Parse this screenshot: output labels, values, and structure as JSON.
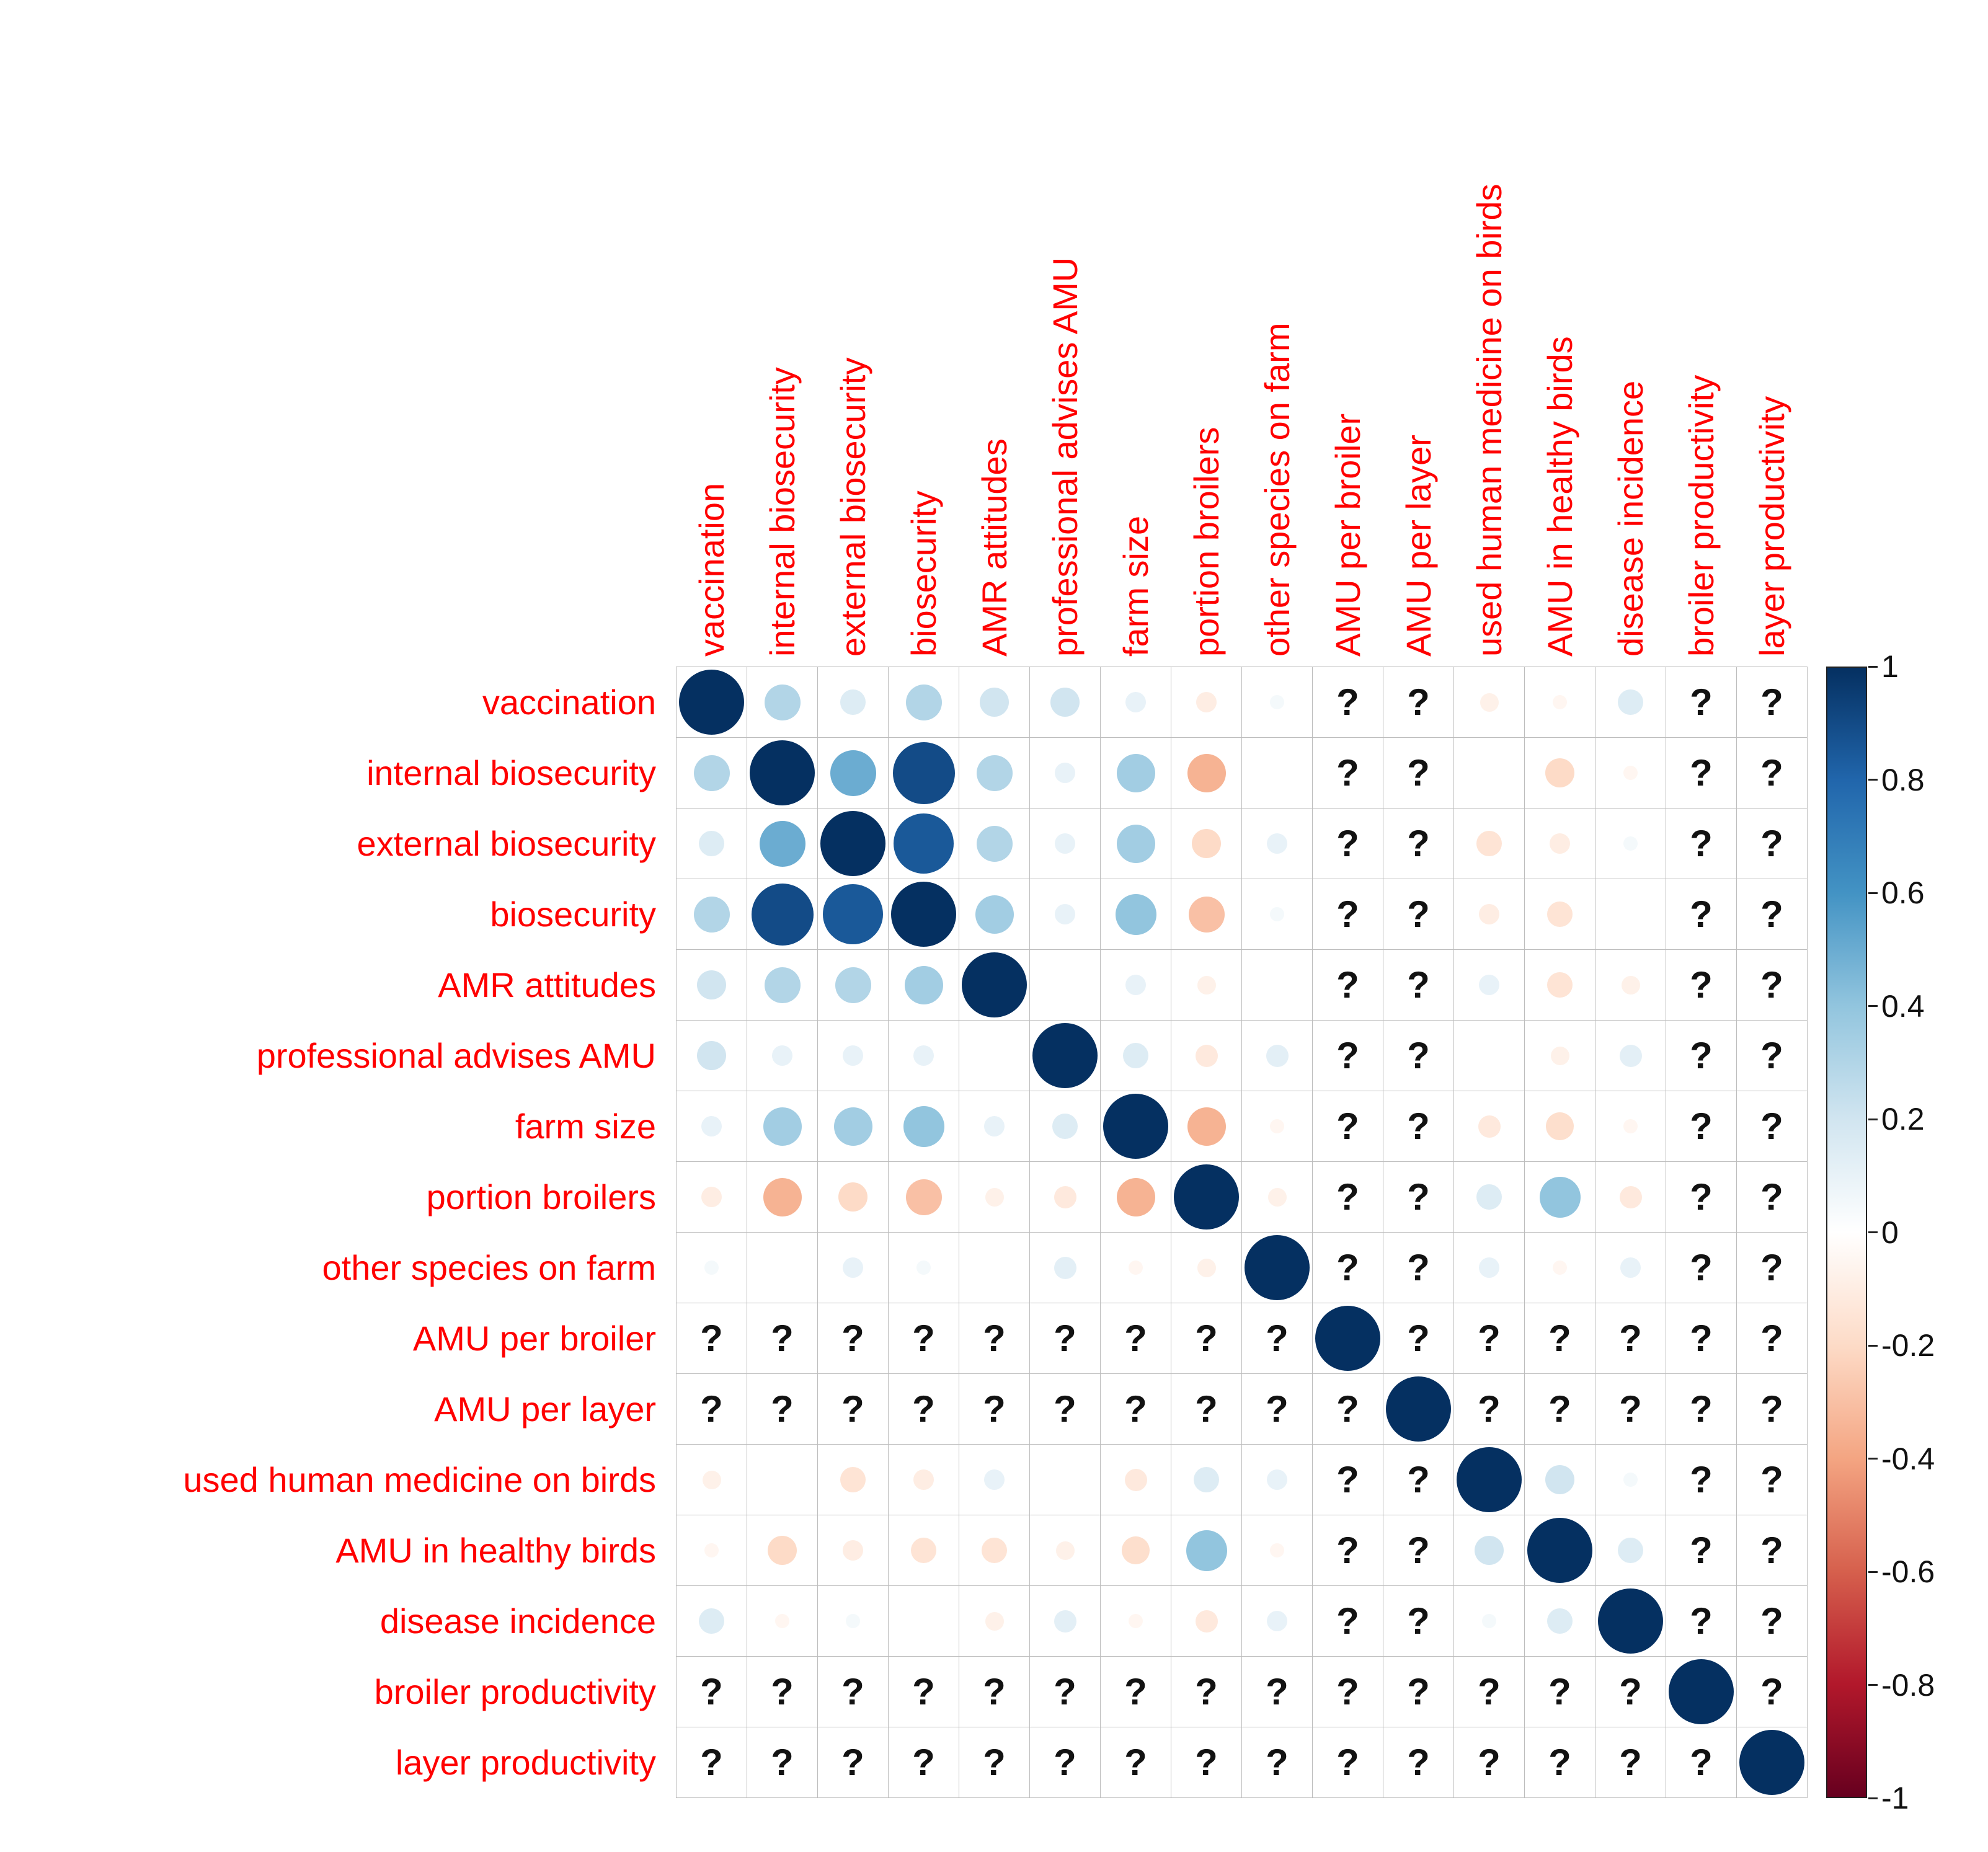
{
  "chart_data": {
    "type": "heatmap",
    "subtype": "correlation-matrix",
    "title": "",
    "labels": [
      "vaccination",
      "internal biosecurity",
      "external biosecurity",
      "biosecurity",
      "AMR attitudes",
      "professional advises AMU",
      "farm size",
      "portion broilers",
      "other species on farm",
      "AMU per broiler",
      "AMU per layer",
      "used human medicine on birds",
      "AMU in healthy birds",
      "disease incidence",
      "broiler productivity",
      "layer productivity"
    ],
    "unknown_marker": "?",
    "matrix": [
      [
        1,
        0.3,
        0.15,
        0.3,
        0.2,
        0.2,
        0.1,
        -0.1,
        0.05,
        "?",
        "?",
        -0.08,
        -0.05,
        0.15,
        "?",
        "?"
      ],
      [
        0.3,
        1,
        0.5,
        0.9,
        0.3,
        0.1,
        0.35,
        -0.35,
        null,
        "?",
        "?",
        null,
        -0.2,
        -0.05,
        "?",
        "?"
      ],
      [
        0.15,
        0.5,
        1,
        0.85,
        0.3,
        0.1,
        0.35,
        -0.2,
        0.1,
        "?",
        "?",
        -0.15,
        -0.1,
        0.05,
        "?",
        "?"
      ],
      [
        0.3,
        0.9,
        0.85,
        1,
        0.35,
        0.1,
        0.4,
        -0.3,
        0.05,
        "?",
        "?",
        -0.1,
        -0.15,
        null,
        "?",
        "?"
      ],
      [
        0.2,
        0.3,
        0.3,
        0.35,
        1,
        null,
        0.1,
        -0.08,
        null,
        "?",
        "?",
        0.1,
        -0.15,
        -0.08,
        "?",
        "?"
      ],
      [
        0.2,
        0.1,
        0.1,
        0.1,
        null,
        1,
        0.15,
        -0.12,
        0.12,
        "?",
        "?",
        null,
        -0.08,
        0.12,
        "?",
        "?"
      ],
      [
        0.1,
        0.35,
        0.35,
        0.4,
        0.1,
        0.15,
        1,
        -0.35,
        -0.05,
        "?",
        "?",
        -0.12,
        -0.18,
        -0.05,
        "?",
        "?"
      ],
      [
        -0.1,
        -0.35,
        -0.2,
        -0.3,
        -0.08,
        -0.12,
        -0.35,
        1,
        -0.08,
        "?",
        "?",
        0.15,
        0.4,
        -0.12,
        "?",
        "?"
      ],
      [
        0.05,
        null,
        0.1,
        0.05,
        null,
        0.12,
        -0.05,
        -0.08,
        1,
        "?",
        "?",
        0.1,
        -0.05,
        0.1,
        "?",
        "?"
      ],
      [
        "?",
        "?",
        "?",
        "?",
        "?",
        "?",
        "?",
        "?",
        "?",
        1,
        "?",
        "?",
        "?",
        "?",
        "?",
        "?"
      ],
      [
        "?",
        "?",
        "?",
        "?",
        "?",
        "?",
        "?",
        "?",
        "?",
        "?",
        1,
        "?",
        "?",
        "?",
        "?",
        "?"
      ],
      [
        -0.08,
        null,
        -0.15,
        -0.1,
        0.1,
        null,
        -0.12,
        0.15,
        0.1,
        "?",
        "?",
        1,
        0.2,
        0.05,
        "?",
        "?"
      ],
      [
        -0.05,
        -0.2,
        -0.1,
        -0.15,
        -0.15,
        -0.08,
        -0.18,
        0.4,
        -0.05,
        "?",
        "?",
        0.2,
        1,
        0.15,
        "?",
        "?"
      ],
      [
        0.15,
        -0.05,
        0.05,
        null,
        -0.08,
        0.12,
        -0.05,
        -0.12,
        0.1,
        "?",
        "?",
        0.05,
        0.15,
        1,
        "?",
        "?"
      ],
      [
        "?",
        "?",
        "?",
        "?",
        "?",
        "?",
        "?",
        "?",
        "?",
        "?",
        "?",
        "?",
        "?",
        "?",
        1,
        "?"
      ],
      [
        "?",
        "?",
        "?",
        "?",
        "?",
        "?",
        "?",
        "?",
        "?",
        "?",
        "?",
        "?",
        "?",
        "?",
        "?",
        1
      ]
    ],
    "axis_label_color": "#ff0000",
    "grid_line_color": "#bdbdbd",
    "palette": [
      [
        -1,
        "#67001F"
      ],
      [
        -0.8,
        "#B2182B"
      ],
      [
        -0.6,
        "#D6604D"
      ],
      [
        -0.4,
        "#F4A582"
      ],
      [
        -0.2,
        "#FDDBC7"
      ],
      [
        0,
        "#FFFFFF"
      ],
      [
        0.2,
        "#D1E5F0"
      ],
      [
        0.4,
        "#92C5DE"
      ],
      [
        0.6,
        "#4393C4"
      ],
      [
        0.8,
        "#2166AC"
      ],
      [
        1,
        "#053061"
      ]
    ],
    "colorbar": {
      "min": -1,
      "max": 1,
      "ticks": [
        "1",
        "0.8",
        "0.6",
        "0.4",
        "0.2",
        "0",
        "-0.2",
        "-0.4",
        "-0.6",
        "-0.8",
        "-1"
      ]
    },
    "legend_position": "right",
    "grid": true
  }
}
